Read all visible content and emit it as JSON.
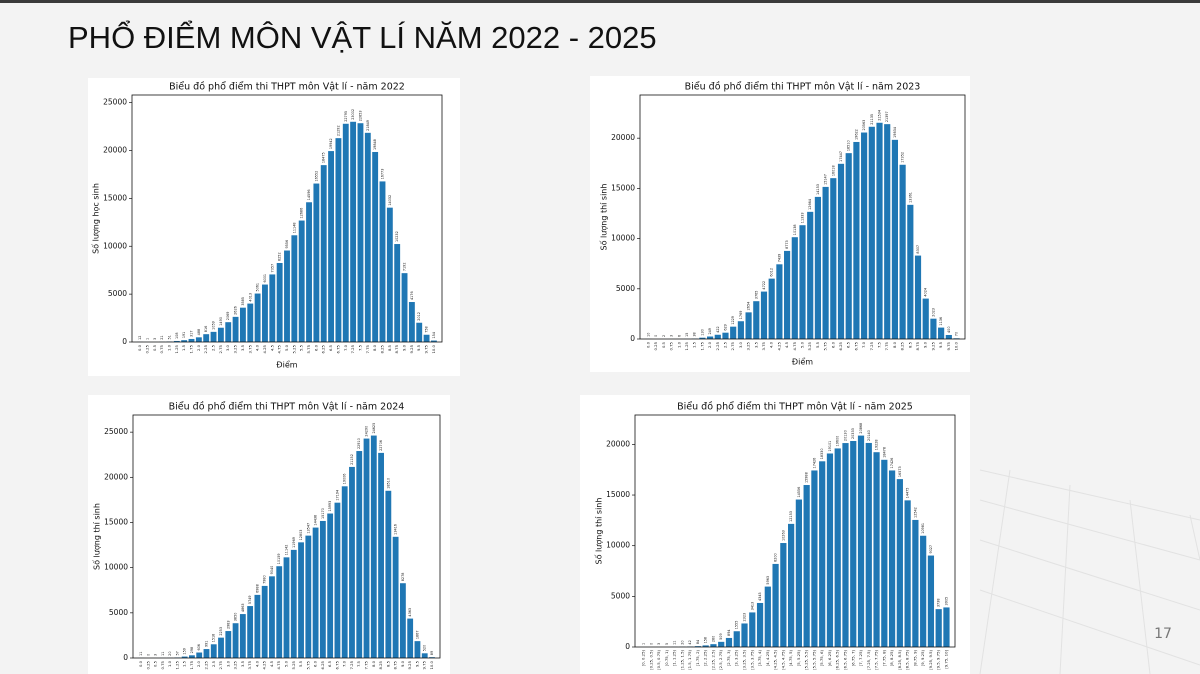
{
  "title": "PHỔ ĐIỂM MÔN VẬT LÍ NĂM 2022 - 2025",
  "page_number": "17",
  "chart_data": [
    {
      "type": "bar",
      "title": "Biểu đồ phổ điểm thi THPT môn Vật lí - năm 2022",
      "x_label": "Điểm",
      "y_label": "Số lượng học sinh",
      "color": "#1f77b4",
      "categories": [
        "0.0",
        "0.25",
        "0.5",
        "0.75",
        "1.0",
        "1.25",
        "1.5",
        "1.75",
        "2.0",
        "2.25",
        "2.5",
        "2.75",
        "3.0",
        "3.25",
        "3.5",
        "3.75",
        "4.0",
        "4.25",
        "4.5",
        "4.75",
        "5.0",
        "5.25",
        "5.5",
        "5.75",
        "6.0",
        "6.25",
        "6.5",
        "6.75",
        "7.0",
        "7.25",
        "7.5",
        "7.75",
        "8.0",
        "8.25",
        "8.5",
        "8.75",
        "9.0",
        "9.25",
        "9.5",
        "9.75",
        "10.0"
      ],
      "values": [
        12,
        1,
        3,
        21,
        51,
        108,
        191,
        317,
        488,
        816,
        1059,
        1490,
        2069,
        2626,
        3585,
        4013,
        5061,
        6001,
        7057,
        8252,
        9556,
        11148,
        12686,
        14596,
        16552,
        18475,
        19942,
        21292,
        22795,
        23002,
        22853,
        21849,
        19848,
        16773,
        14032,
        10232,
        7192,
        4176,
        2012,
        758,
        154
      ],
      "ylim": [
        0,
        25800
      ],
      "yticks": [
        0,
        5000,
        10000,
        15000,
        20000,
        25000
      ]
    },
    {
      "type": "bar",
      "title": "Biểu đồ phổ điểm thi THPT môn Vật lí - năm 2023",
      "x_label": "Điểm",
      "y_label": "Số lượng thí sinh",
      "color": "#1f77b4",
      "categories": [
        "0.0",
        "0.25",
        "0.5",
        "0.75",
        "1.0",
        "1.25",
        "1.5",
        "1.75",
        "2.0",
        "2.25",
        "2.5",
        "2.75",
        "3.0",
        "3.25",
        "3.5",
        "3.75",
        "4.0",
        "4.25",
        "4.5",
        "4.75",
        "5.0",
        "5.25",
        "5.5",
        "5.75",
        "6.0",
        "6.25",
        "6.5",
        "6.75",
        "7.0",
        "7.25",
        "7.5",
        "7.75",
        "8.0",
        "8.25",
        "8.5",
        "8.75",
        "9.0",
        "9.25",
        "9.5",
        "9.75",
        "10.0"
      ],
      "values": [
        10,
        0,
        2,
        3,
        6,
        15,
        38,
        130,
        249,
        422,
        629,
        1229,
        1769,
        2654,
        3765,
        4722,
        6012,
        7439,
        8773,
        10138,
        11333,
        12664,
        14153,
        15147,
        16018,
        17447,
        18510,
        19622,
        20563,
        21135,
        21534,
        21397,
        19834,
        17352,
        13361,
        8307,
        4024,
        2023,
        1136,
        400,
        70
      ],
      "ylim": [
        0,
        24300
      ],
      "yticks": [
        0,
        5000,
        10000,
        15000,
        20000
      ]
    },
    {
      "type": "bar",
      "title": "Biểu đồ phổ điểm thi THPT môn Vật lí - năm 2024",
      "y_label": "Số lượng thí sinh",
      "color": "#1f77b4",
      "categories": [
        "0.0",
        "0.25",
        "0.5",
        "0.75",
        "1.0",
        "1.25",
        "1.5",
        "1.75",
        "2.0",
        "2.25",
        "2.5",
        "2.75",
        "3.0",
        "3.25",
        "3.5",
        "3.75",
        "4.0",
        "4.25",
        "4.5",
        "4.75",
        "5.0",
        "5.25",
        "5.5",
        "5.75",
        "6.0",
        "6.25",
        "6.5",
        "6.75",
        "7.0",
        "7.25",
        "7.5",
        "7.75",
        "8.0",
        "8.25",
        "8.5",
        "8.75",
        "9.0",
        "9.25",
        "9.5",
        "9.75",
        "10.0"
      ],
      "values": [
        11,
        0,
        3,
        11,
        20,
        57,
        159,
        298,
        606,
        991,
        1518,
        2253,
        2983,
        3850,
        4863,
        5749,
        6988,
        7980,
        9040,
        10159,
        11142,
        11969,
        12803,
        13547,
        14438,
        15170,
        15993,
        17194,
        19006,
        21152,
        22910,
        24290,
        24625,
        22706,
        18510,
        13416,
        8278,
        4363,
        1867,
        520,
        89
      ],
      "ylim": [
        0,
        26900
      ],
      "yticks": [
        0,
        5000,
        10000,
        15000,
        20000,
        25000
      ]
    },
    {
      "type": "bar",
      "title": "Biểu đồ phổ điểm thi THPT môn Vật lí - năm 2025",
      "y_label": "Số lượng thí sinh",
      "color": "#1f77b4",
      "categories": [
        "[0, 0.25)",
        "[0.25, 0.5)",
        "[0.5, 0.75)",
        "[0.75, 1)",
        "[1, 1.25)",
        "[1.25, 1.5)",
        "[1.5, 1.75)",
        "[1.75, 2)",
        "[2, 2.25)",
        "[2.25, 2.5)",
        "[2.5, 2.75)",
        "[2.75, 3)",
        "[3, 3.25)",
        "[3.25, 3.5)",
        "[3.5, 3.75)",
        "[3.75, 4)",
        "[4, 4.25)",
        "[4.25, 4.5)",
        "[4.5, 4.75)",
        "[4.75, 5)",
        "[5, 5.25)",
        "[5.25, 5.5)",
        "[5.5, 5.75)",
        "[5.75, 6)",
        "[6, 6.25)",
        "[6.25, 6.5)",
        "[6.5, 6.75)",
        "[6.75, 7)",
        "[7, 7.25)",
        "[7.25, 7.5)",
        "[7.5, 7.75)",
        "[7.75, 8)",
        "[8, 8.25)",
        "[8.25, 8.5)",
        "[8.5, 8.75)",
        "[8.75, 9)",
        "[9, 9.25)",
        "[9.25, 9.5)",
        "[9.5, 9.75)",
        "[9.75, 10]"
      ],
      "values": [
        1,
        0,
        3,
        5,
        11,
        20,
        42,
        84,
        158,
        280,
        509,
        894,
        1555,
        2323,
        3413,
        4345,
        5963,
        8200,
        10263,
        12153,
        14556,
        15988,
        17426,
        18330,
        19101,
        19600,
        20130,
        20333,
        20868,
        20140,
        19228,
        18478,
        17426,
        16573,
        14475,
        12542,
        10981,
        9027,
        3738,
        3905
      ],
      "ylim": [
        0,
        22900
      ],
      "yticks": [
        0,
        5000,
        10000,
        15000,
        20000
      ]
    }
  ]
}
